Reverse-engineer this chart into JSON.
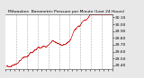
{
  "title": "Milwaukee  Barometric Pressure per Minute (Last 24 Hours)",
  "bg_color": "#e8e8e8",
  "plot_bg_color": "#ffffff",
  "line_color": "#cc0000",
  "grid_color": "#999999",
  "title_color": "#000000",
  "tick_color": "#000000",
  "y_min": 29.35,
  "y_max": 30.15,
  "n_points": 1440,
  "y_ticks": [
    29.4,
    29.5,
    29.6,
    29.7,
    29.8,
    29.9,
    30.0,
    30.1
  ],
  "n_vgrid": 9,
  "dot_size": 0.3
}
